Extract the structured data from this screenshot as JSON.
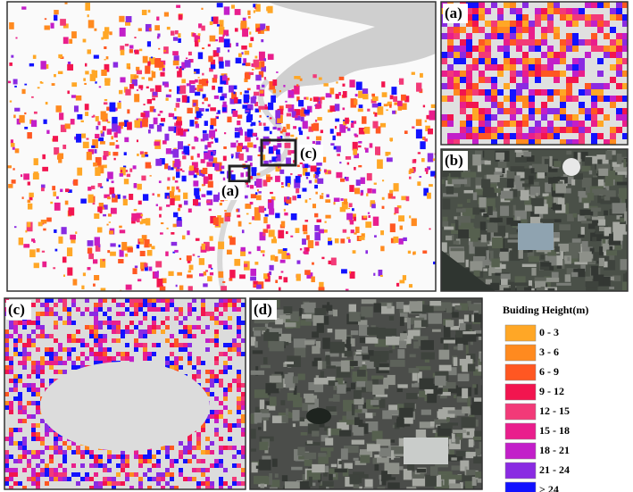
{
  "panels": {
    "main": {
      "labels": [
        "(a)",
        "(c)"
      ]
    },
    "a": {
      "label": "(a)"
    },
    "b": {
      "label": "(b)"
    },
    "c": {
      "label": "(c)"
    },
    "d": {
      "label": "(d)"
    }
  },
  "legend": {
    "title": "Buiding Height(m)",
    "items": [
      {
        "label": "0 - 3",
        "color": "#ffa726"
      },
      {
        "label": "3 - 6",
        "color": "#ff8a1f"
      },
      {
        "label": "6 - 9",
        "color": "#ff5722"
      },
      {
        "label": "9 - 12",
        "color": "#f2154f"
      },
      {
        "label": "12 - 15",
        "color": "#f23a78"
      },
      {
        "label": "15 - 18",
        "color": "#e91e8c"
      },
      {
        "label": "18 - 21",
        "color": "#c21fc9"
      },
      {
        "label": "21 - 24",
        "color": "#8a2be2"
      },
      {
        "label": "> 24",
        "color": "#1212ff"
      }
    ]
  }
}
